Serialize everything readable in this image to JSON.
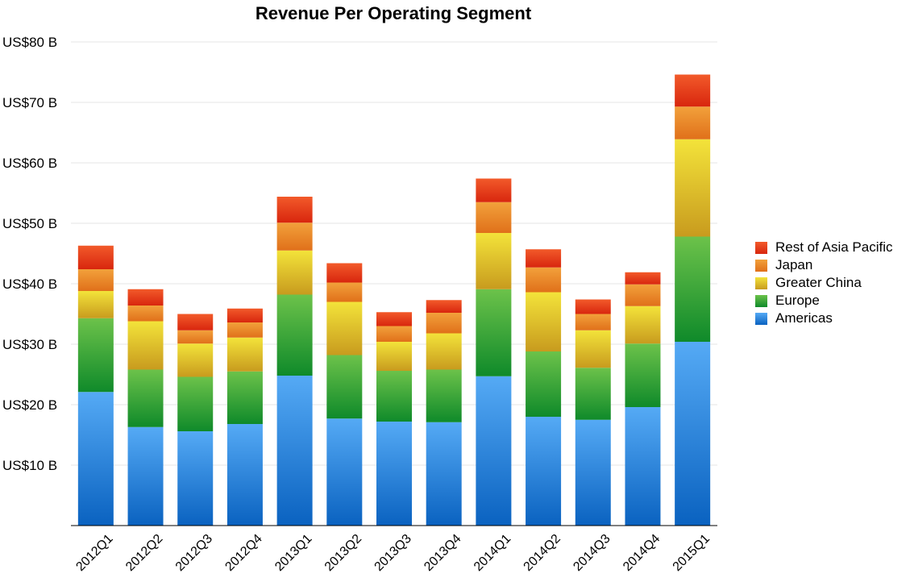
{
  "chart_data": {
    "type": "bar",
    "stacked": true,
    "title": "Revenue Per Operating Segment",
    "xlabel": "",
    "ylabel": "",
    "ylim": [
      0,
      80
    ],
    "yticks": [
      10,
      20,
      30,
      40,
      50,
      60,
      70,
      80
    ],
    "ytick_labels": [
      "US$10 B",
      "US$20 B",
      "US$30 B",
      "US$40 B",
      "US$50 B",
      "US$60 B",
      "US$70 B",
      "US$80 B"
    ],
    "grid": true,
    "legend_position": "right",
    "categories": [
      "2012Q1",
      "2012Q2",
      "2012Q3",
      "2012Q4",
      "2013Q1",
      "2013Q2",
      "2013Q3",
      "2013Q4",
      "2014Q1",
      "2014Q2",
      "2014Q3",
      "2014Q4",
      "2015Q1"
    ],
    "series": [
      {
        "name": "Americas",
        "color_top": "#55aaf5",
        "color_bottom": "#0a62c0",
        "values": [
          22.1,
          16.3,
          15.6,
          16.8,
          24.8,
          17.7,
          17.2,
          17.1,
          24.7,
          18.0,
          17.5,
          19.6,
          30.4
        ]
      },
      {
        "name": "Europe",
        "color_top": "#6cc24a",
        "color_bottom": "#0f8a2a",
        "values": [
          12.2,
          9.5,
          9.0,
          8.7,
          13.4,
          10.5,
          8.4,
          8.7,
          14.4,
          10.8,
          8.6,
          10.5,
          17.4
        ]
      },
      {
        "name": "Greater China",
        "color_top": "#f3e33a",
        "color_bottom": "#c89b1e",
        "values": [
          4.5,
          8.0,
          5.5,
          5.6,
          7.3,
          8.8,
          4.8,
          6.0,
          9.3,
          9.8,
          6.2,
          6.2,
          16.1
        ]
      },
      {
        "name": "Japan",
        "color_top": "#f2a13b",
        "color_bottom": "#e0701a",
        "values": [
          3.6,
          2.6,
          2.2,
          2.5,
          4.6,
          3.2,
          2.6,
          3.4,
          5.1,
          4.1,
          2.7,
          3.6,
          5.4
        ]
      },
      {
        "name": "Rest of Asia Pacific",
        "color_top": "#f25a2a",
        "color_bottom": "#d8260e",
        "values": [
          3.9,
          2.7,
          2.7,
          2.3,
          4.3,
          3.2,
          2.3,
          2.1,
          3.9,
          3.0,
          2.4,
          2.0,
          5.3
        ]
      }
    ]
  }
}
